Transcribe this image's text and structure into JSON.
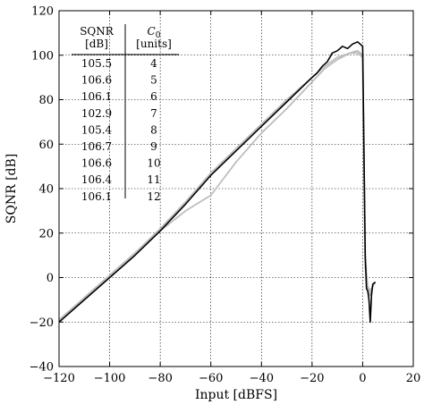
{
  "chart_data": {
    "type": "line",
    "xlabel": "Input [dBFS]",
    "ylabel": "SQNR [dB]",
    "xlim": [
      -120,
      20
    ],
    "ylim": [
      -40,
      120
    ],
    "xticks": [
      -120,
      -100,
      -80,
      -60,
      -40,
      -20,
      0,
      20
    ],
    "yticks": [
      -40,
      -20,
      0,
      20,
      40,
      60,
      80,
      100,
      120
    ],
    "xtick_labels": [
      "−120",
      "−100",
      "−80",
      "−60",
      "−40",
      "−20",
      "0",
      "20"
    ],
    "ytick_labels": [
      "−40",
      "−20",
      "0",
      "20",
      "40",
      "60",
      "80",
      "100",
      "120"
    ],
    "grid": true,
    "legend": "none",
    "series": [
      {
        "color": "#000000",
        "points": [
          [
            -120,
            -20
          ],
          [
            -110,
            -10
          ],
          [
            -100,
            0
          ],
          [
            -90,
            10
          ],
          [
            -80,
            21
          ],
          [
            -70,
            33
          ],
          [
            -60,
            46
          ],
          [
            -50,
            57
          ],
          [
            -40,
            68
          ],
          [
            -30,
            79
          ],
          [
            -20,
            90
          ],
          [
            -18,
            92
          ],
          [
            -16,
            95
          ],
          [
            -14,
            97
          ],
          [
            -12,
            101
          ],
          [
            -10,
            102
          ],
          [
            -8,
            104
          ],
          [
            -6,
            103
          ],
          [
            -4,
            105
          ],
          [
            -2,
            106
          ],
          [
            -1,
            105
          ],
          [
            0,
            104
          ],
          [
            0.5,
            60
          ],
          [
            1,
            10
          ],
          [
            1.5,
            -5
          ],
          [
            2,
            -6
          ],
          [
            2.5,
            -10
          ],
          [
            3,
            -20
          ],
          [
            3.5,
            -8
          ],
          [
            4,
            -3
          ],
          [
            5,
            -2
          ]
        ]
      },
      {
        "color": "#bdbdbd",
        "points": [
          [
            -120,
            -19
          ],
          [
            -110,
            -9
          ],
          [
            -100,
            1
          ],
          [
            -90,
            11
          ],
          [
            -80,
            21
          ],
          [
            -70,
            30
          ],
          [
            -60,
            37
          ],
          [
            -50,
            52
          ],
          [
            -40,
            65
          ],
          [
            -30,
            76
          ],
          [
            -20,
            88
          ],
          [
            -15,
            94
          ],
          [
            -10,
            98
          ],
          [
            -5,
            101
          ],
          [
            -2,
            101
          ],
          [
            0,
            99
          ],
          [
            0.5,
            50
          ],
          [
            1,
            5
          ],
          [
            2,
            -5
          ],
          [
            3,
            -8
          ],
          [
            4,
            -4
          ],
          [
            5,
            -2
          ]
        ]
      },
      {
        "color": "#bdbdbd",
        "points": [
          [
            -120,
            -20
          ],
          [
            -110,
            -9
          ],
          [
            -100,
            1
          ],
          [
            -90,
            11
          ],
          [
            -80,
            22
          ],
          [
            -70,
            34
          ],
          [
            -60,
            47
          ],
          [
            -50,
            58
          ],
          [
            -40,
            69
          ],
          [
            -30,
            80
          ],
          [
            -20,
            90
          ],
          [
            -15,
            95
          ],
          [
            -10,
            99
          ],
          [
            -5,
            101
          ],
          [
            -2,
            102
          ],
          [
            0,
            100
          ],
          [
            0.5,
            55
          ],
          [
            1,
            8
          ],
          [
            2,
            -4
          ],
          [
            3,
            -6
          ],
          [
            4,
            -4
          ],
          [
            5,
            -2
          ]
        ]
      }
    ]
  },
  "table": {
    "header_left_1": "SQNR",
    "header_left_2": "[dB]",
    "header_right_1": "C",
    "header_right_sub": "0",
    "header_right_2": "[units]",
    "rows": [
      {
        "sqnr": "105.5",
        "c0": "4"
      },
      {
        "sqnr": "106.6",
        "c0": "5"
      },
      {
        "sqnr": "106.1",
        "c0": "6"
      },
      {
        "sqnr": "102.9",
        "c0": "7"
      },
      {
        "sqnr": "105.4",
        "c0": "8"
      },
      {
        "sqnr": "106.7",
        "c0": "9"
      },
      {
        "sqnr": "106.6",
        "c0": "10"
      },
      {
        "sqnr": "106.4",
        "c0": "11"
      },
      {
        "sqnr": "106.1",
        "c0": "12"
      }
    ]
  }
}
